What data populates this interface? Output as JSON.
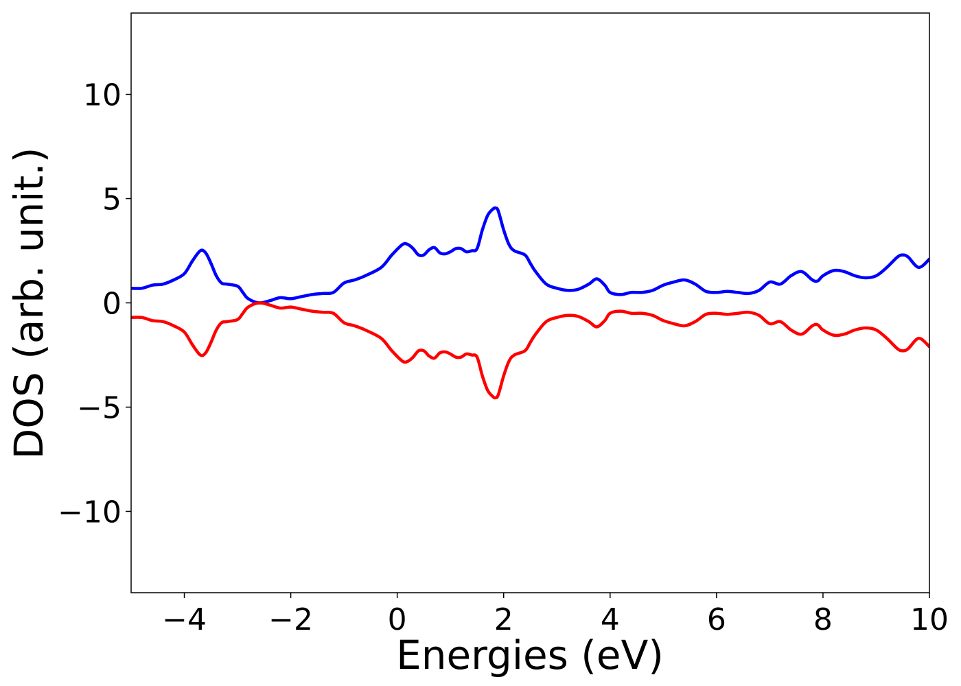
{
  "chart_data": {
    "type": "line",
    "title": "",
    "xlabel": "Energies (eV)",
    "ylabel": "DOS (arb. unit.)",
    "xlim": [
      -5,
      10
    ],
    "ylim": [
      -13.9,
      13.9
    ],
    "xticks": [
      -4,
      -2,
      0,
      2,
      4,
      6,
      8,
      10
    ],
    "xtick_labels": [
      "−4",
      "−2",
      "0",
      "2",
      "4",
      "6",
      "8",
      "10"
    ],
    "yticks": [
      -10,
      -5,
      0,
      5,
      10
    ],
    "ytick_labels": [
      "−10",
      "−5",
      "0",
      "5",
      "10"
    ],
    "grid": false,
    "legend": "none",
    "series": [
      {
        "color": "#0000ff",
        "x": [
          -5.0,
          -4.8,
          -4.6,
          -4.4,
          -4.2,
          -4.0,
          -3.85,
          -3.7,
          -3.6,
          -3.5,
          -3.4,
          -3.3,
          -3.2,
          -3.0,
          -2.9,
          -2.8,
          -2.6,
          -2.4,
          -2.2,
          -2.0,
          -1.8,
          -1.6,
          -1.4,
          -1.2,
          -1.0,
          -0.8,
          -0.6,
          -0.3,
          -0.1,
          0.1,
          0.2,
          0.3,
          0.4,
          0.5,
          0.6,
          0.7,
          0.8,
          0.9,
          1.0,
          1.1,
          1.2,
          1.3,
          1.4,
          1.5,
          1.6,
          1.7,
          1.8,
          1.85,
          1.9,
          2.0,
          2.1,
          2.2,
          2.4,
          2.5,
          2.6,
          2.8,
          3.0,
          3.2,
          3.4,
          3.6,
          3.75,
          3.9,
          4.0,
          4.2,
          4.4,
          4.6,
          4.8,
          5.0,
          5.2,
          5.4,
          5.6,
          5.8,
          6.0,
          6.2,
          6.4,
          6.6,
          6.8,
          7.0,
          7.2,
          7.4,
          7.6,
          7.8,
          7.9,
          8.0,
          8.2,
          8.4,
          8.6,
          8.8,
          9.0,
          9.2,
          9.4,
          9.5,
          9.6,
          9.8,
          10.0
        ],
        "y": [
          0.7,
          0.7,
          0.85,
          0.9,
          1.1,
          1.4,
          2.0,
          2.5,
          2.4,
          1.9,
          1.3,
          0.95,
          0.9,
          0.8,
          0.5,
          0.2,
          0.0,
          0.1,
          0.25,
          0.2,
          0.3,
          0.4,
          0.45,
          0.5,
          0.95,
          1.1,
          1.3,
          1.7,
          2.3,
          2.8,
          2.8,
          2.6,
          2.3,
          2.3,
          2.55,
          2.65,
          2.4,
          2.35,
          2.45,
          2.6,
          2.6,
          2.45,
          2.5,
          2.6,
          3.5,
          4.2,
          4.5,
          4.55,
          4.4,
          3.5,
          2.8,
          2.5,
          2.3,
          1.9,
          1.5,
          0.9,
          0.7,
          0.6,
          0.65,
          0.9,
          1.15,
          0.85,
          0.5,
          0.4,
          0.5,
          0.5,
          0.6,
          0.85,
          1.0,
          1.1,
          0.9,
          0.55,
          0.5,
          0.55,
          0.5,
          0.45,
          0.6,
          1.0,
          0.9,
          1.3,
          1.5,
          1.1,
          1.05,
          1.3,
          1.55,
          1.5,
          1.3,
          1.2,
          1.3,
          1.7,
          2.2,
          2.3,
          2.2,
          1.7,
          2.1
        ]
      },
      {
        "color": "#ff0000",
        "x": [
          -5.0,
          -4.8,
          -4.6,
          -4.4,
          -4.2,
          -4.0,
          -3.85,
          -3.7,
          -3.6,
          -3.5,
          -3.4,
          -3.3,
          -3.2,
          -3.0,
          -2.9,
          -2.8,
          -2.6,
          -2.4,
          -2.2,
          -2.0,
          -1.8,
          -1.6,
          -1.4,
          -1.2,
          -1.0,
          -0.8,
          -0.6,
          -0.3,
          -0.1,
          0.1,
          0.2,
          0.3,
          0.4,
          0.5,
          0.6,
          0.7,
          0.8,
          0.9,
          1.0,
          1.1,
          1.2,
          1.3,
          1.4,
          1.5,
          1.6,
          1.7,
          1.8,
          1.85,
          1.9,
          2.0,
          2.1,
          2.2,
          2.4,
          2.5,
          2.6,
          2.8,
          3.0,
          3.2,
          3.4,
          3.6,
          3.75,
          3.9,
          4.0,
          4.2,
          4.4,
          4.6,
          4.8,
          5.0,
          5.2,
          5.4,
          5.6,
          5.8,
          6.0,
          6.2,
          6.4,
          6.6,
          6.8,
          7.0,
          7.2,
          7.4,
          7.6,
          7.8,
          7.9,
          8.0,
          8.2,
          8.4,
          8.6,
          8.8,
          9.0,
          9.2,
          9.4,
          9.5,
          9.6,
          9.8,
          10.0
        ],
        "y": [
          -0.7,
          -0.7,
          -0.85,
          -0.9,
          -1.1,
          -1.4,
          -2.0,
          -2.5,
          -2.4,
          -1.9,
          -1.3,
          -0.95,
          -0.9,
          -0.8,
          -0.5,
          -0.2,
          0.0,
          -0.1,
          -0.25,
          -0.2,
          -0.3,
          -0.4,
          -0.45,
          -0.5,
          -0.95,
          -1.1,
          -1.3,
          -1.7,
          -2.3,
          -2.8,
          -2.8,
          -2.6,
          -2.3,
          -2.3,
          -2.55,
          -2.65,
          -2.4,
          -2.35,
          -2.45,
          -2.6,
          -2.6,
          -2.45,
          -2.5,
          -2.6,
          -3.5,
          -4.2,
          -4.5,
          -4.55,
          -4.4,
          -3.5,
          -2.8,
          -2.5,
          -2.3,
          -1.9,
          -1.5,
          -0.9,
          -0.7,
          -0.6,
          -0.65,
          -0.9,
          -1.15,
          -0.85,
          -0.5,
          -0.4,
          -0.5,
          -0.5,
          -0.6,
          -0.85,
          -1.0,
          -1.1,
          -0.9,
          -0.55,
          -0.5,
          -0.55,
          -0.5,
          -0.45,
          -0.6,
          -1.0,
          -0.9,
          -1.3,
          -1.5,
          -1.1,
          -1.05,
          -1.3,
          -1.55,
          -1.5,
          -1.3,
          -1.2,
          -1.3,
          -1.7,
          -2.2,
          -2.3,
          -2.2,
          -1.7,
          -2.1
        ]
      }
    ]
  }
}
